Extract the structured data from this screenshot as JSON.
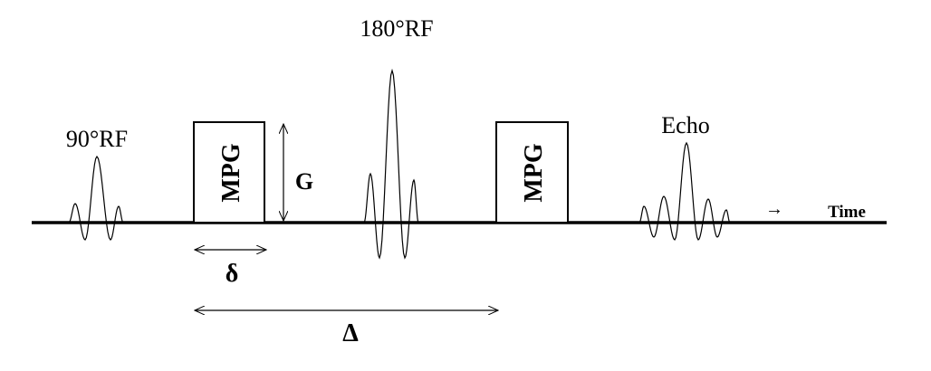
{
  "labels": {
    "rf90": "90°RF",
    "rf180": "180°RF",
    "echo": "Echo",
    "mpg1": "MPG",
    "mpg2": "MPG",
    "gradient": "G",
    "delta_small": "δ",
    "delta_big": "Δ",
    "time": "Time",
    "time_arrow": "→"
  }
}
